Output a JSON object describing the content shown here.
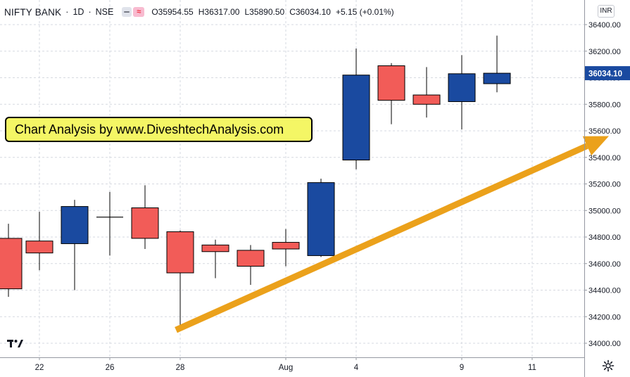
{
  "header": {
    "symbol": "NIFTY BANK",
    "interval": "1D",
    "exchange": "NSE",
    "separator": "·",
    "ohlc": {
      "o_label": "O",
      "o_value": "35954.55",
      "h_label": "H",
      "h_value": "36317.00",
      "l_label": "L",
      "l_value": "35890.50",
      "c_label": "C",
      "c_value": "36034.10",
      "change": "+5.15 (+0.01%)"
    }
  },
  "currency": "INR",
  "banner_text": "Chart Analysis by www.DiveshtechAnalysis.com",
  "last_price_label": "36034.10",
  "logo_text": "17",
  "icons": {
    "settings": "gear-icon",
    "logo": "tradingview-logo-icon"
  },
  "colors": {
    "up": "#1a4aa0",
    "down": "#f25c58",
    "arrow": "#eba11b",
    "price_label_bg": "#1a4aa0",
    "grid": "#d6d9e0"
  },
  "chart_data": {
    "type": "candlestick",
    "ylim": [
      33950,
      36500
    ],
    "y_ticks": [
      "36400.00",
      "36200.00",
      "36000.00",
      "35800.00",
      "35600.00",
      "35400.00",
      "35200.00",
      "35000.00",
      "34800.00",
      "34600.00",
      "34400.00",
      "34200.00",
      "34000.00"
    ],
    "x_ticks": [
      "22",
      "26",
      "28",
      "Aug",
      "4",
      "9",
      "11"
    ],
    "candles": [
      {
        "o": 34790,
        "h": 34900,
        "l": 34350,
        "c": 34410
      },
      {
        "o": 34770,
        "h": 34990,
        "l": 34550,
        "c": 34680
      },
      {
        "o": 34750,
        "h": 35080,
        "l": 34400,
        "c": 35030
      },
      {
        "o": 34950,
        "h": 35140,
        "l": 34660,
        "c": 34950
      },
      {
        "o": 35020,
        "h": 35190,
        "l": 34710,
        "c": 34790
      },
      {
        "o": 34840,
        "h": 34850,
        "l": 34110,
        "c": 34530
      },
      {
        "o": 34740,
        "h": 34780,
        "l": 34490,
        "c": 34690
      },
      {
        "o": 34700,
        "h": 34740,
        "l": 34440,
        "c": 34580
      },
      {
        "o": 34760,
        "h": 34860,
        "l": 34580,
        "c": 34710
      },
      {
        "o": 34660,
        "h": 35240,
        "l": 34650,
        "c": 35210
      },
      {
        "o": 35380,
        "h": 36220,
        "l": 35310,
        "c": 36020
      },
      {
        "o": 36090,
        "h": 36110,
        "l": 35650,
        "c": 35830
      },
      {
        "o": 35870,
        "h": 36080,
        "l": 35700,
        "c": 35800
      },
      {
        "o": 35820,
        "h": 36170,
        "l": 35610,
        "c": 36030
      },
      {
        "o": 35955,
        "h": 36317,
        "l": 35890,
        "c": 36034
      }
    ],
    "trend_arrow": {
      "from_y": 34100,
      "to_y": 35560
    }
  }
}
